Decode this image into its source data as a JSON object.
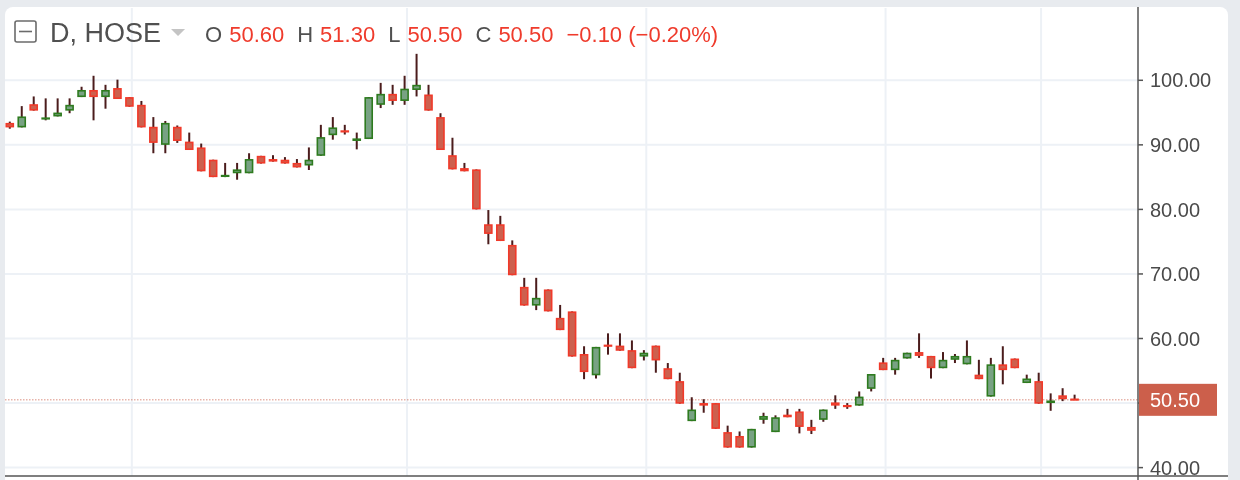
{
  "chart_data": {
    "type": "candlestick",
    "title": "D, HOSE",
    "annotations": [
      "O",
      "50.60",
      "H",
      "51.30",
      "L",
      "50.50",
      "C",
      "50.50",
      "−0.10 (−0.20%)"
    ],
    "categories": [
      null,
      null,
      null,
      null,
      null,
      null,
      null,
      null,
      null,
      null,
      null,
      null,
      null,
      null,
      null,
      null,
      null,
      null,
      null,
      null,
      null,
      null,
      null,
      null,
      null,
      null,
      null,
      null,
      null,
      null,
      null,
      null,
      null,
      null,
      null,
      null,
      null,
      null,
      null,
      null,
      null,
      null,
      null,
      null,
      null,
      null,
      null,
      null,
      null,
      null,
      null,
      null,
      null,
      null,
      null,
      null,
      null,
      null,
      null,
      null,
      null,
      null,
      null,
      null,
      null,
      null,
      null,
      null,
      null,
      null,
      null,
      null,
      null,
      null,
      null,
      null,
      null,
      null,
      null,
      null,
      null,
      null,
      null,
      null,
      null,
      null,
      null,
      null,
      null,
      null
    ],
    "ohlc": [
      [
        93.4,
        93.6,
        92.5,
        92.7
      ],
      [
        92.7,
        96.0,
        92.7,
        94.4
      ],
      [
        96.3,
        97.5,
        95.3,
        95.3
      ],
      [
        94.0,
        97.2,
        93.8,
        94.2
      ],
      [
        94.4,
        97.2,
        94.4,
        95.0
      ],
      [
        95.3,
        97.2,
        94.9,
        96.2
      ],
      [
        97.4,
        99.0,
        97.4,
        98.5
      ],
      [
        98.5,
        100.7,
        93.8,
        97.4
      ],
      [
        97.4,
        99.3,
        95.6,
        98.5
      ],
      [
        98.8,
        100.1,
        97.1,
        97.1
      ],
      [
        97.4,
        97.4,
        95.9,
        95.9
      ],
      [
        96.2,
        96.8,
        92.7,
        92.7
      ],
      [
        92.8,
        94.3,
        88.7,
        90.3
      ],
      [
        90.0,
        93.7,
        88.7,
        93.4
      ],
      [
        92.8,
        93.0,
        90.3,
        90.6
      ],
      [
        90.5,
        91.9,
        89.2,
        89.2
      ],
      [
        89.6,
        90.2,
        85.9,
        85.9
      ],
      [
        87.7,
        87.7,
        85.0,
        85.0
      ],
      [
        85.1,
        87.2,
        85.0,
        85.3
      ],
      [
        85.6,
        87.2,
        84.6,
        86.2
      ],
      [
        85.6,
        88.7,
        85.6,
        87.8
      ],
      [
        88.3,
        88.3,
        87.1,
        87.1
      ],
      [
        87.8,
        88.4,
        87.4,
        87.4
      ],
      [
        87.7,
        88.1,
        87.1,
        87.1
      ],
      [
        87.2,
        87.8,
        86.5,
        86.5
      ],
      [
        86.8,
        89.6,
        86.1,
        87.7
      ],
      [
        88.3,
        93.1,
        88.3,
        91.2
      ],
      [
        91.5,
        94.3,
        90.8,
        92.7
      ],
      [
        92.2,
        93.1,
        91.6,
        92.0
      ],
      [
        90.6,
        91.9,
        89.3,
        91.0
      ],
      [
        90.9,
        97.4,
        90.9,
        97.4
      ],
      [
        96.2,
        99.6,
        95.7,
        97.9
      ],
      [
        97.9,
        99.3,
        96.2,
        96.8
      ],
      [
        96.8,
        100.7,
        96.2,
        98.7
      ],
      [
        98.5,
        104.1,
        97.5,
        99.3
      ],
      [
        97.8,
        99.3,
        95.3,
        95.3
      ],
      [
        94.3,
        94.9,
        89.2,
        89.2
      ],
      [
        88.4,
        91.1,
        86.2,
        86.2
      ],
      [
        86.4,
        87.2,
        85.9,
        85.9
      ],
      [
        86.2,
        86.2,
        80.0,
        80.0
      ],
      [
        77.7,
        79.9,
        74.6,
        76.2
      ],
      [
        77.7,
        79.0,
        75.1,
        75.1
      ],
      [
        74.5,
        75.2,
        69.8,
        69.8
      ],
      [
        68.0,
        69.4,
        65.1,
        65.1
      ],
      [
        65.1,
        69.4,
        64.4,
        66.3
      ],
      [
        67.6,
        67.6,
        64.2,
        64.2
      ],
      [
        63.2,
        65.2,
        61.3,
        61.3
      ],
      [
        64.2,
        64.2,
        57.2,
        57.2
      ],
      [
        57.6,
        58.8,
        53.7,
        54.8
      ],
      [
        54.3,
        58.7,
        53.8,
        58.7
      ],
      [
        59.0,
        60.8,
        57.5,
        58.8
      ],
      [
        58.9,
        60.8,
        58.1,
        58.1
      ],
      [
        58.2,
        59.7,
        55.4,
        55.4
      ],
      [
        57.2,
        58.2,
        56.6,
        57.8
      ],
      [
        58.9,
        58.9,
        54.7,
        56.6
      ],
      [
        55.4,
        56.2,
        53.7,
        53.7
      ],
      [
        53.4,
        54.7,
        49.9,
        49.9
      ],
      [
        47.2,
        50.9,
        47.2,
        49.0
      ],
      [
        50.0,
        50.6,
        48.5,
        49.6
      ],
      [
        50.0,
        50.0,
        46.0,
        46.0
      ],
      [
        45.5,
        46.5,
        43.1,
        43.1
      ],
      [
        44.9,
        45.6,
        43.1,
        43.1
      ],
      [
        43.1,
        46.0,
        43.1,
        46.0
      ],
      [
        47.4,
        48.5,
        46.8,
        48.0
      ],
      [
        45.5,
        48.1,
        45.5,
        47.8
      ],
      [
        48.2,
        49.1,
        47.8,
        47.8
      ],
      [
        48.7,
        49.1,
        45.3,
        46.3
      ],
      [
        46.3,
        47.4,
        45.2,
        45.7
      ],
      [
        47.4,
        49.0,
        47.1,
        49.0
      ],
      [
        50.1,
        51.2,
        49.1,
        49.6
      ],
      [
        49.7,
        50.0,
        49.1,
        49.4
      ],
      [
        49.6,
        51.8,
        49.6,
        51.0
      ],
      [
        52.2,
        54.5,
        51.8,
        54.5
      ],
      [
        56.3,
        57.0,
        55.1,
        55.1
      ],
      [
        55.1,
        57.0,
        54.4,
        56.7
      ],
      [
        56.9,
        57.8,
        56.9,
        57.8
      ],
      [
        57.9,
        60.8,
        57.0,
        57.3
      ],
      [
        57.3,
        57.3,
        53.8,
        55.4
      ],
      [
        55.4,
        57.9,
        55.4,
        56.7
      ],
      [
        56.7,
        57.6,
        56.2,
        57.3
      ],
      [
        56.0,
        59.7,
        56.0,
        57.3
      ],
      [
        54.4,
        56.7,
        53.7,
        53.7
      ],
      [
        51.0,
        57.0,
        51.0,
        56.0
      ],
      [
        56.0,
        58.8,
        52.9,
        55.1
      ],
      [
        56.9,
        56.9,
        55.4,
        55.4
      ],
      [
        53.1,
        54.4,
        53.1,
        53.8
      ],
      [
        53.4,
        54.7,
        49.9,
        49.9
      ],
      [
        50.0,
        51.5,
        48.8,
        50.4
      ],
      [
        51.2,
        52.3,
        50.3,
        50.6
      ],
      [
        50.6,
        51.3,
        50.5,
        50.5
      ]
    ],
    "ylim": [
      38.7,
      111.2
    ],
    "yticks": [
      {
        "value": 40,
        "label": "40.00"
      },
      {
        "value": 50,
        "label": null
      },
      {
        "value": 60,
        "label": "60.00"
      },
      {
        "value": 70,
        "label": "70.00"
      },
      {
        "value": 80,
        "label": "80.00"
      },
      {
        "value": 90,
        "label": "90.00"
      },
      {
        "value": 100,
        "label": "100.00"
      }
    ],
    "grid": "y",
    "ref_lines": [
      {
        "axis": "y",
        "value": 50.5,
        "label": "50.50",
        "color": "#cc5f4b",
        "line_style": "dotted"
      }
    ]
  }
}
